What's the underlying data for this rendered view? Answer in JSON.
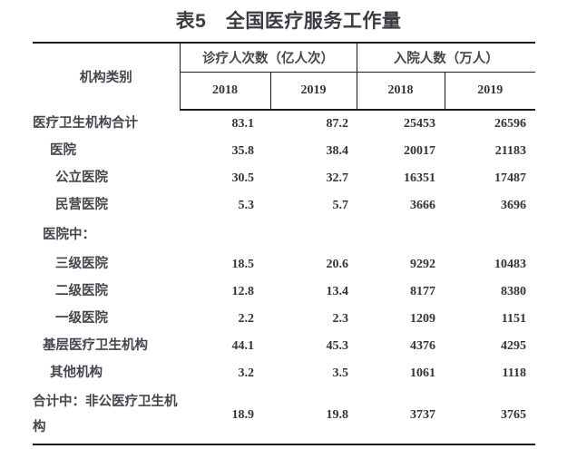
{
  "title": "表5　全国医疗服务工作量",
  "table": {
    "header": {
      "category": "机构类别",
      "groups": [
        {
          "label": "诊疗人次数（亿人次）",
          "years": [
            "2018",
            "2019"
          ]
        },
        {
          "label": "入院人数（万人）",
          "years": [
            "2018",
            "2019"
          ]
        }
      ]
    },
    "rows": [
      {
        "name": "医疗卫生机构合计",
        "indent": 0,
        "values": [
          "83.1",
          "87.2",
          "25453",
          "26596"
        ]
      },
      {
        "name": "医院",
        "indent": 2,
        "values": [
          "35.8",
          "38.4",
          "20017",
          "21183"
        ]
      },
      {
        "name": "公立医院",
        "indent": 3,
        "values": [
          "30.5",
          "32.7",
          "16351",
          "17487"
        ]
      },
      {
        "name": "民营医院",
        "indent": 3,
        "values": [
          "5.3",
          "5.7",
          "3666",
          "3696"
        ]
      },
      {
        "name": "医院中：",
        "indent": 1,
        "values": [
          "",
          "",
          "",
          ""
        ]
      },
      {
        "name": "三级医院",
        "indent": 3,
        "values": [
          "18.5",
          "20.6",
          "9292",
          "10483"
        ]
      },
      {
        "name": "二级医院",
        "indent": 3,
        "values": [
          "12.8",
          "13.4",
          "8177",
          "8380"
        ]
      },
      {
        "name": "一级医院",
        "indent": 3,
        "values": [
          "2.2",
          "2.3",
          "1209",
          "1151"
        ]
      },
      {
        "name": "基层医疗卫生机构",
        "indent": 1,
        "values": [
          "44.1",
          "45.3",
          "4376",
          "4295"
        ]
      },
      {
        "name": "其他机构",
        "indent": 2,
        "values": [
          "3.2",
          "3.5",
          "1061",
          "1118"
        ]
      },
      {
        "name": "合计中：非公医疗卫生机构",
        "indent": 0,
        "values": [
          "18.9",
          "19.8",
          "3737",
          "3765"
        ]
      }
    ]
  },
  "colors": {
    "border": "#1c1c1c",
    "label_text": "#45454d",
    "number_text": "#33333b",
    "title_text": "#3b3b42",
    "background": "#ffffff"
  }
}
